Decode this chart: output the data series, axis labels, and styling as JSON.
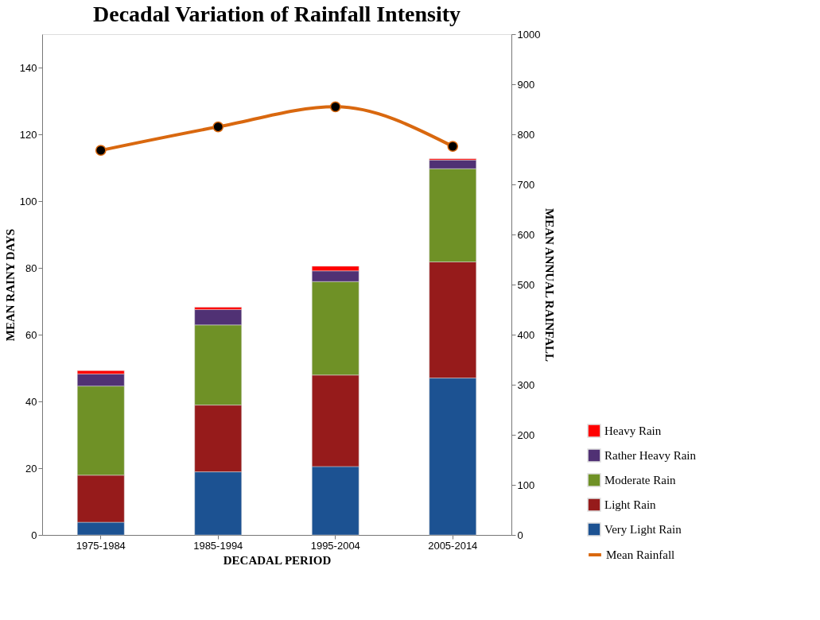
{
  "chart_data": {
    "type": "bar",
    "stacked": true,
    "title": "Decadal Variation of Rainfall Intensity",
    "xlabel": "DECADAL  PERIOD",
    "ylabel": "MEAN  RAINY  DAYS",
    "y2label": "MEAN  ANNUAL  RAINFALL",
    "categories": [
      "1975-1984",
      "1985-1994",
      "1995-2004",
      "2005-2014"
    ],
    "series": [
      {
        "name": "Very Light Rain",
        "color": "#1c5292",
        "values": [
          3.8,
          18.9,
          20.5,
          47.0
        ]
      },
      {
        "name": "Light Rain",
        "color": "#961b1b",
        "values": [
          14.1,
          20.0,
          27.4,
          34.8
        ]
      },
      {
        "name": "Moderate Rain",
        "color": "#6f9126",
        "values": [
          26.7,
          24.0,
          28.0,
          27.9
        ]
      },
      {
        "name": "Rather Heavy Rain",
        "color": "#503174",
        "values": [
          3.6,
          4.6,
          3.2,
          2.6
        ]
      },
      {
        "name": "Heavy Rain",
        "color": "#ff0000",
        "values": [
          1.0,
          0.7,
          1.4,
          0.4
        ]
      },
      {
        "name": "Mean Rainfall",
        "type": "line",
        "axis": "y2",
        "marker": "circle",
        "color": "#d9680f",
        "values": [
          768,
          815,
          855,
          776
        ]
      }
    ],
    "ylim": [
      0,
      150
    ],
    "yticks": [
      0,
      20,
      40,
      60,
      80,
      100,
      120,
      140
    ],
    "y2lim": [
      0,
      1000
    ],
    "y2ticks": [
      0,
      100,
      200,
      300,
      400,
      500,
      600,
      700,
      800,
      900,
      1000
    ],
    "legend": "bottom right"
  }
}
